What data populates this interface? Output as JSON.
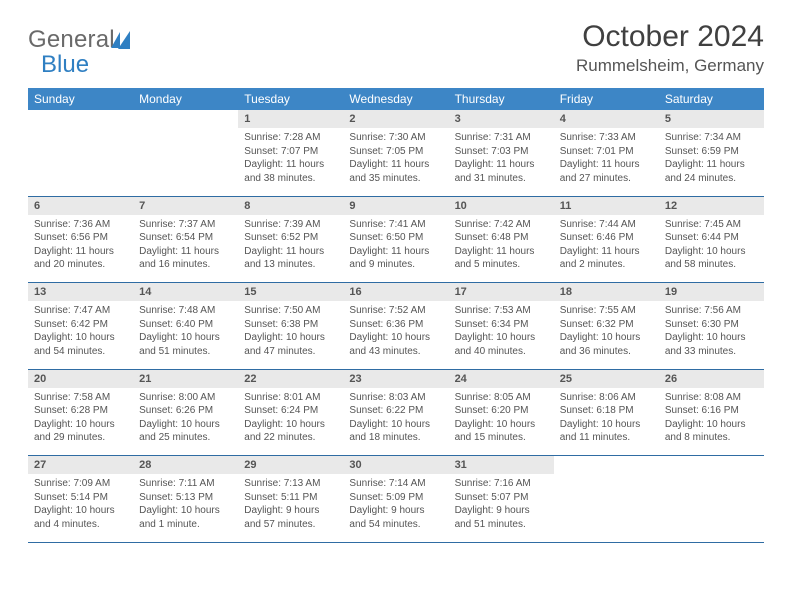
{
  "brand": {
    "general": "General",
    "blue": "Blue"
  },
  "title": "October 2024",
  "location": "Rummelsheim, Germany",
  "colors": {
    "header_bg": "#3d86c6",
    "header_fg": "#ffffff",
    "row_border": "#2f6ca3",
    "daynum_bg": "#e9e9e9",
    "text": "#555555",
    "title": "#404040",
    "logo_gray": "#6a6a6a",
    "logo_blue": "#2f7fc2",
    "page_bg": "#ffffff"
  },
  "weekdays": [
    "Sunday",
    "Monday",
    "Tuesday",
    "Wednesday",
    "Thursday",
    "Friday",
    "Saturday"
  ],
  "first_weekday_index": 2,
  "days": [
    {
      "n": "1",
      "sunrise": "Sunrise: 7:28 AM",
      "sunset": "Sunset: 7:07 PM",
      "day1": "Daylight: 11 hours",
      "day2": "and 38 minutes."
    },
    {
      "n": "2",
      "sunrise": "Sunrise: 7:30 AM",
      "sunset": "Sunset: 7:05 PM",
      "day1": "Daylight: 11 hours",
      "day2": "and 35 minutes."
    },
    {
      "n": "3",
      "sunrise": "Sunrise: 7:31 AM",
      "sunset": "Sunset: 7:03 PM",
      "day1": "Daylight: 11 hours",
      "day2": "and 31 minutes."
    },
    {
      "n": "4",
      "sunrise": "Sunrise: 7:33 AM",
      "sunset": "Sunset: 7:01 PM",
      "day1": "Daylight: 11 hours",
      "day2": "and 27 minutes."
    },
    {
      "n": "5",
      "sunrise": "Sunrise: 7:34 AM",
      "sunset": "Sunset: 6:59 PM",
      "day1": "Daylight: 11 hours",
      "day2": "and 24 minutes."
    },
    {
      "n": "6",
      "sunrise": "Sunrise: 7:36 AM",
      "sunset": "Sunset: 6:56 PM",
      "day1": "Daylight: 11 hours",
      "day2": "and 20 minutes."
    },
    {
      "n": "7",
      "sunrise": "Sunrise: 7:37 AM",
      "sunset": "Sunset: 6:54 PM",
      "day1": "Daylight: 11 hours",
      "day2": "and 16 minutes."
    },
    {
      "n": "8",
      "sunrise": "Sunrise: 7:39 AM",
      "sunset": "Sunset: 6:52 PM",
      "day1": "Daylight: 11 hours",
      "day2": "and 13 minutes."
    },
    {
      "n": "9",
      "sunrise": "Sunrise: 7:41 AM",
      "sunset": "Sunset: 6:50 PM",
      "day1": "Daylight: 11 hours",
      "day2": "and 9 minutes."
    },
    {
      "n": "10",
      "sunrise": "Sunrise: 7:42 AM",
      "sunset": "Sunset: 6:48 PM",
      "day1": "Daylight: 11 hours",
      "day2": "and 5 minutes."
    },
    {
      "n": "11",
      "sunrise": "Sunrise: 7:44 AM",
      "sunset": "Sunset: 6:46 PM",
      "day1": "Daylight: 11 hours",
      "day2": "and 2 minutes."
    },
    {
      "n": "12",
      "sunrise": "Sunrise: 7:45 AM",
      "sunset": "Sunset: 6:44 PM",
      "day1": "Daylight: 10 hours",
      "day2": "and 58 minutes."
    },
    {
      "n": "13",
      "sunrise": "Sunrise: 7:47 AM",
      "sunset": "Sunset: 6:42 PM",
      "day1": "Daylight: 10 hours",
      "day2": "and 54 minutes."
    },
    {
      "n": "14",
      "sunrise": "Sunrise: 7:48 AM",
      "sunset": "Sunset: 6:40 PM",
      "day1": "Daylight: 10 hours",
      "day2": "and 51 minutes."
    },
    {
      "n": "15",
      "sunrise": "Sunrise: 7:50 AM",
      "sunset": "Sunset: 6:38 PM",
      "day1": "Daylight: 10 hours",
      "day2": "and 47 minutes."
    },
    {
      "n": "16",
      "sunrise": "Sunrise: 7:52 AM",
      "sunset": "Sunset: 6:36 PM",
      "day1": "Daylight: 10 hours",
      "day2": "and 43 minutes."
    },
    {
      "n": "17",
      "sunrise": "Sunrise: 7:53 AM",
      "sunset": "Sunset: 6:34 PM",
      "day1": "Daylight: 10 hours",
      "day2": "and 40 minutes."
    },
    {
      "n": "18",
      "sunrise": "Sunrise: 7:55 AM",
      "sunset": "Sunset: 6:32 PM",
      "day1": "Daylight: 10 hours",
      "day2": "and 36 minutes."
    },
    {
      "n": "19",
      "sunrise": "Sunrise: 7:56 AM",
      "sunset": "Sunset: 6:30 PM",
      "day1": "Daylight: 10 hours",
      "day2": "and 33 minutes."
    },
    {
      "n": "20",
      "sunrise": "Sunrise: 7:58 AM",
      "sunset": "Sunset: 6:28 PM",
      "day1": "Daylight: 10 hours",
      "day2": "and 29 minutes."
    },
    {
      "n": "21",
      "sunrise": "Sunrise: 8:00 AM",
      "sunset": "Sunset: 6:26 PM",
      "day1": "Daylight: 10 hours",
      "day2": "and 25 minutes."
    },
    {
      "n": "22",
      "sunrise": "Sunrise: 8:01 AM",
      "sunset": "Sunset: 6:24 PM",
      "day1": "Daylight: 10 hours",
      "day2": "and 22 minutes."
    },
    {
      "n": "23",
      "sunrise": "Sunrise: 8:03 AM",
      "sunset": "Sunset: 6:22 PM",
      "day1": "Daylight: 10 hours",
      "day2": "and 18 minutes."
    },
    {
      "n": "24",
      "sunrise": "Sunrise: 8:05 AM",
      "sunset": "Sunset: 6:20 PM",
      "day1": "Daylight: 10 hours",
      "day2": "and 15 minutes."
    },
    {
      "n": "25",
      "sunrise": "Sunrise: 8:06 AM",
      "sunset": "Sunset: 6:18 PM",
      "day1": "Daylight: 10 hours",
      "day2": "and 11 minutes."
    },
    {
      "n": "26",
      "sunrise": "Sunrise: 8:08 AM",
      "sunset": "Sunset: 6:16 PM",
      "day1": "Daylight: 10 hours",
      "day2": "and 8 minutes."
    },
    {
      "n": "27",
      "sunrise": "Sunrise: 7:09 AM",
      "sunset": "Sunset: 5:14 PM",
      "day1": "Daylight: 10 hours",
      "day2": "and 4 minutes."
    },
    {
      "n": "28",
      "sunrise": "Sunrise: 7:11 AM",
      "sunset": "Sunset: 5:13 PM",
      "day1": "Daylight: 10 hours",
      "day2": "and 1 minute."
    },
    {
      "n": "29",
      "sunrise": "Sunrise: 7:13 AM",
      "sunset": "Sunset: 5:11 PM",
      "day1": "Daylight: 9 hours",
      "day2": "and 57 minutes."
    },
    {
      "n": "30",
      "sunrise": "Sunrise: 7:14 AM",
      "sunset": "Sunset: 5:09 PM",
      "day1": "Daylight: 9 hours",
      "day2": "and 54 minutes."
    },
    {
      "n": "31",
      "sunrise": "Sunrise: 7:16 AM",
      "sunset": "Sunset: 5:07 PM",
      "day1": "Daylight: 9 hours",
      "day2": "and 51 minutes."
    }
  ]
}
